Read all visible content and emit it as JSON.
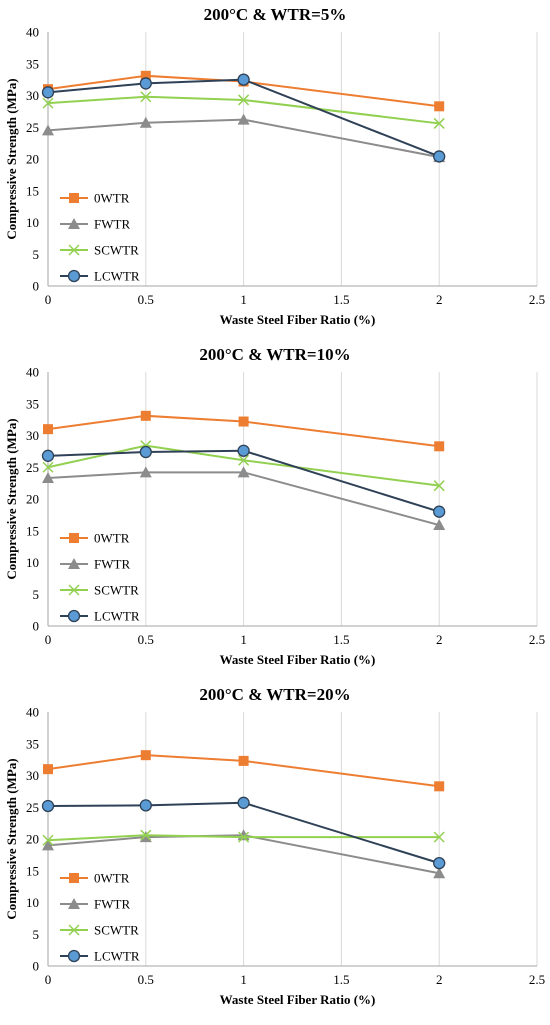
{
  "chart_data": [
    {
      "type": "line",
      "title": "200°C & WTR=5%",
      "xlabel": "Waste Steel Fiber Ratio (%)",
      "ylabel": "Compressive Strength (MPa)",
      "xlim": [
        0,
        2.5
      ],
      "ylim": [
        0,
        40
      ],
      "xticks": [
        "0",
        "0.5",
        "1",
        "1.5",
        "2",
        "2.5"
      ],
      "yticks": [
        "0",
        "5",
        "10",
        "15",
        "20",
        "25",
        "30",
        "35",
        "40"
      ],
      "x": [
        0,
        0.5,
        1,
        2
      ],
      "grid": "vertical",
      "legend_position": "left",
      "series": [
        {
          "name": "0WTR",
          "values": [
            31.0,
            33.1,
            32.2,
            28.3
          ],
          "color": "#ED7D31",
          "marker": "square"
        },
        {
          "name": "FWTR",
          "values": [
            24.5,
            25.7,
            26.2,
            20.3
          ],
          "color": "#8C8C8C",
          "marker": "triangle"
        },
        {
          "name": "SCWTR",
          "values": [
            28.8,
            29.8,
            29.3,
            25.6
          ],
          "color": "#92D050",
          "marker": "x"
        },
        {
          "name": "LCWTR",
          "values": [
            30.5,
            31.9,
            32.5,
            20.4
          ],
          "color": "#2F4156",
          "marker": "circle",
          "fill": "#5B9BD5"
        }
      ]
    },
    {
      "type": "line",
      "title": "200°C & WTR=10%",
      "xlabel": "Waste Steel Fiber Ratio (%)",
      "ylabel": "Compressive Strength (MPa)",
      "xlim": [
        0,
        2.5
      ],
      "ylim": [
        0,
        40
      ],
      "xticks": [
        "0",
        "0.5",
        "1",
        "1.5",
        "2",
        "2.5"
      ],
      "yticks": [
        "0",
        "5",
        "10",
        "15",
        "20",
        "25",
        "30",
        "35",
        "40"
      ],
      "x": [
        0,
        0.5,
        1,
        2
      ],
      "grid": "vertical",
      "legend_position": "left",
      "series": [
        {
          "name": "0WTR",
          "values": [
            31.0,
            33.1,
            32.2,
            28.3
          ],
          "color": "#ED7D31",
          "marker": "square"
        },
        {
          "name": "FWTR",
          "values": [
            23.3,
            24.2,
            24.2,
            15.9
          ],
          "color": "#8C8C8C",
          "marker": "triangle"
        },
        {
          "name": "SCWTR",
          "values": [
            25.0,
            28.4,
            26.1,
            22.1
          ],
          "color": "#92D050",
          "marker": "x"
        },
        {
          "name": "LCWTR",
          "values": [
            26.8,
            27.4,
            27.6,
            18.0
          ],
          "color": "#2F4156",
          "marker": "circle",
          "fill": "#5B9BD5"
        }
      ]
    },
    {
      "type": "line",
      "title": "200°C & WTR=20%",
      "xlabel": "Waste Steel Fiber Ratio (%)",
      "ylabel": "Compressive Strength (MPa)",
      "xlim": [
        0,
        2.5
      ],
      "ylim": [
        0,
        40
      ],
      "xticks": [
        "0",
        "0.5",
        "1",
        "1.5",
        "2",
        "2.5"
      ],
      "yticks": [
        "0",
        "5",
        "10",
        "15",
        "20",
        "25",
        "30",
        "35",
        "40"
      ],
      "x": [
        0,
        0.5,
        1,
        2
      ],
      "grid": "vertical",
      "legend_position": "left",
      "series": [
        {
          "name": "0WTR",
          "values": [
            31.0,
            33.2,
            32.3,
            28.3
          ],
          "color": "#ED7D31",
          "marker": "square"
        },
        {
          "name": "FWTR",
          "values": [
            19.0,
            20.3,
            20.6,
            14.6
          ],
          "color": "#8C8C8C",
          "marker": "triangle"
        },
        {
          "name": "SCWTR",
          "values": [
            19.8,
            20.6,
            20.3,
            20.3
          ],
          "color": "#92D050",
          "marker": "x"
        },
        {
          "name": "LCWTR",
          "values": [
            25.2,
            25.3,
            25.7,
            16.2
          ],
          "color": "#2F4156",
          "marker": "circle",
          "fill": "#5B9BD5"
        }
      ]
    }
  ]
}
